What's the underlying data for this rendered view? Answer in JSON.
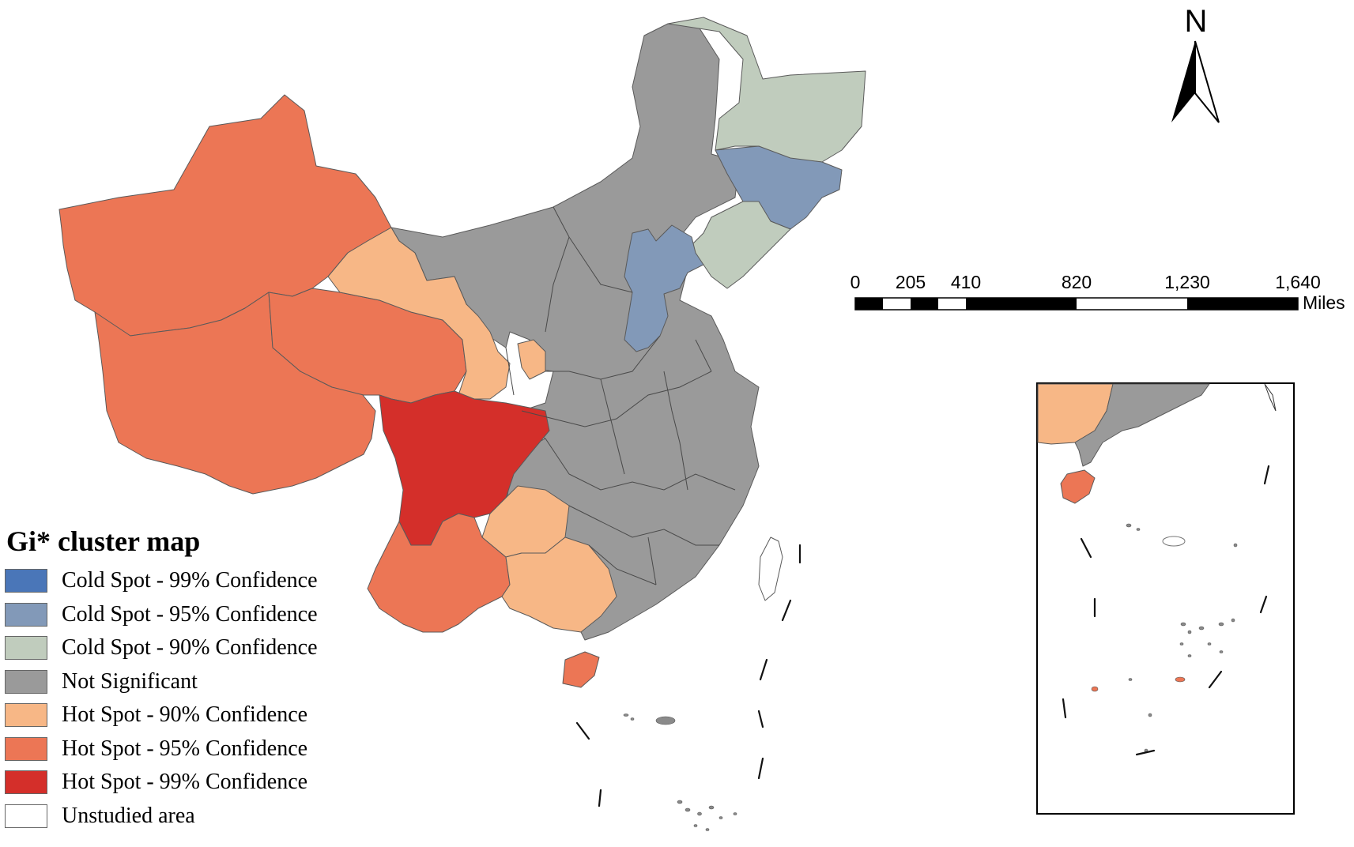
{
  "legend": {
    "title": "Gi* cluster map",
    "items": [
      {
        "label": "Cold Spot - 99% Confidence",
        "color": "#4a76b8"
      },
      {
        "label": "Cold Spot - 95% Confidence",
        "color": "#8299b8"
      },
      {
        "label": "Cold Spot - 90% Confidence",
        "color": "#c0ccbd"
      },
      {
        "label": "Not Significant",
        "color": "#9a9a9a"
      },
      {
        "label": "Hot Spot - 90% Confidence",
        "color": "#f7b786"
      },
      {
        "label": "Hot Spot - 95% Confidence",
        "color": "#ec7655"
      },
      {
        "label": "Hot Spot - 99% Confidence",
        "color": "#d42f2a"
      },
      {
        "label": "Unstudied area",
        "color": "#ffffff"
      }
    ]
  },
  "north_arrow": {
    "label": "N"
  },
  "scale_bar": {
    "ticks": [
      "0",
      "205",
      "410",
      "820",
      "1,230",
      "1,640"
    ],
    "unit": "Miles"
  },
  "colors": {
    "cold99": "#4a76b8",
    "cold95": "#8299b8",
    "cold90": "#c0ccbd",
    "not_significant": "#9a9a9a",
    "hot90": "#f7b786",
    "hot95": "#ec7655",
    "hot99": "#d42f2a"
  }
}
